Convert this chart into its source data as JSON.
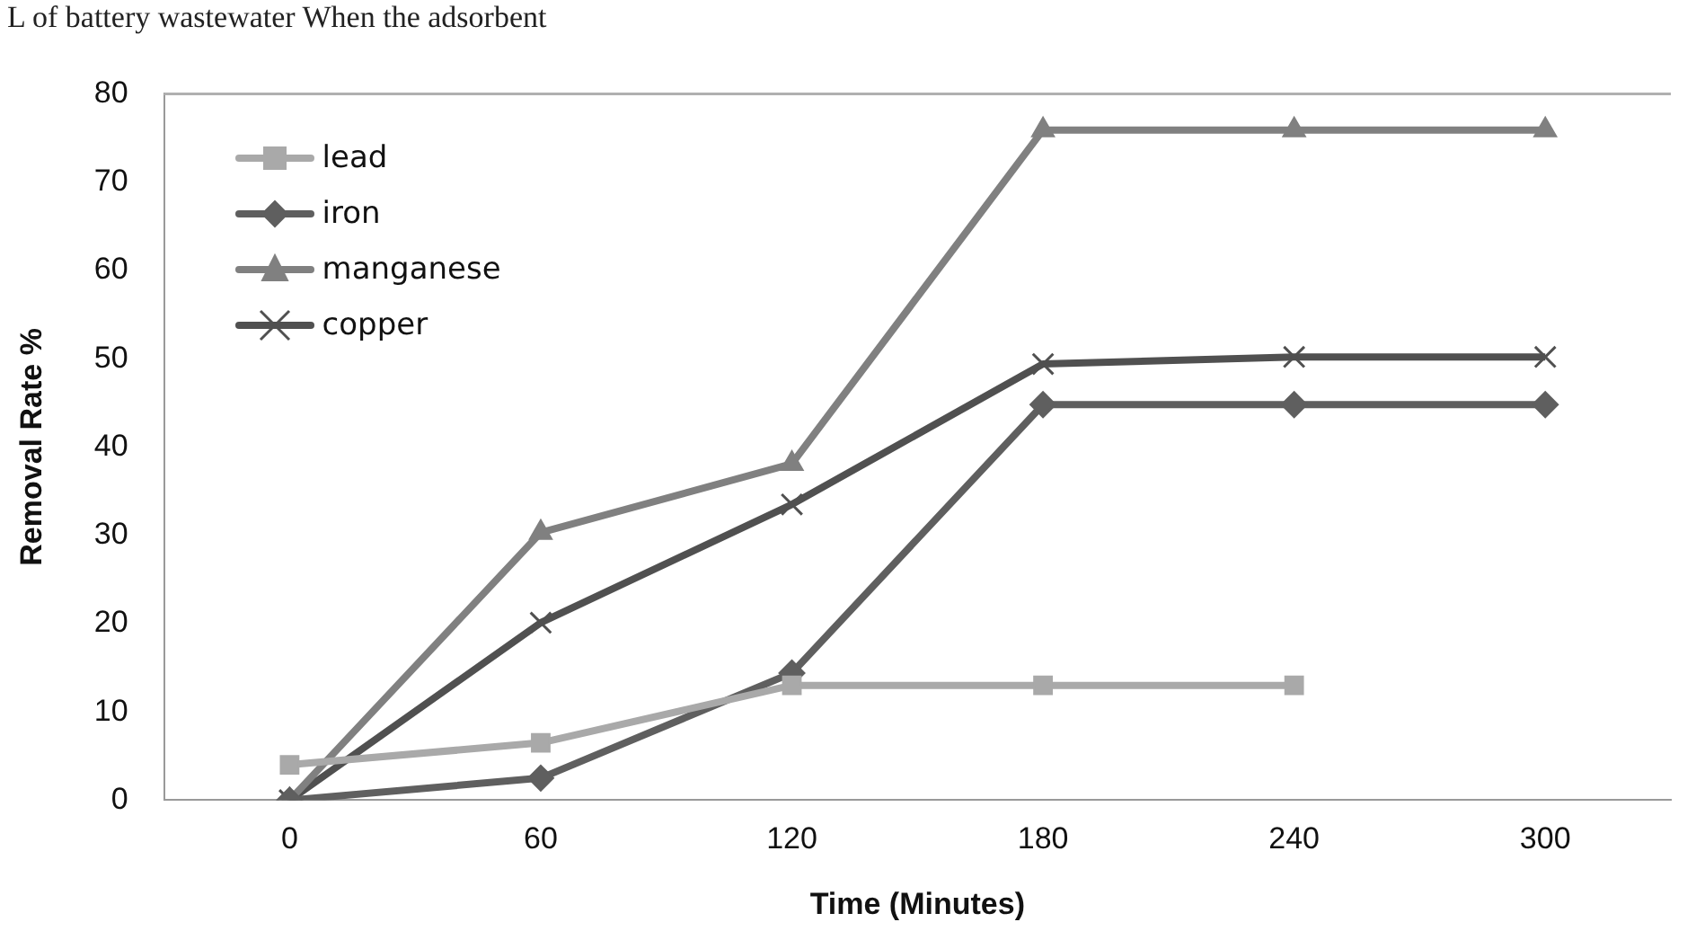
{
  "chart_data": {
    "type": "line",
    "title": "L of battery wastewater When the adsorbent",
    "xlabel": "Time (Minutes)",
    "ylabel": "Removal Rate %",
    "categories": [
      "0",
      "60",
      "120",
      "180",
      "240",
      "300"
    ],
    "series": [
      {
        "name": "lead",
        "color": "#a9a9a9",
        "marker": "square",
        "values": [
          4.0,
          6.5,
          13,
          13,
          13,
          null
        ]
      },
      {
        "name": "iron",
        "color": "#5f5f5f",
        "marker": "diamond",
        "values": [
          0,
          2.5,
          14.4,
          44.8,
          44.8,
          44.8
        ]
      },
      {
        "name": "manganese",
        "color": "#808080",
        "marker": "triangle",
        "values": [
          0,
          30.3,
          38.1,
          75.9,
          75.9,
          75.9
        ]
      },
      {
        "name": "copper",
        "color": "#505050",
        "marker": "cross",
        "values": [
          0,
          20.1,
          33.5,
          49.4,
          50.2,
          50.2
        ]
      }
    ],
    "ylim": [
      0,
      80
    ],
    "yticks": [
      0,
      10,
      20,
      30,
      40,
      50,
      60,
      70,
      80
    ],
    "grid": false,
    "legend": "top left",
    "line_style": "solid"
  }
}
